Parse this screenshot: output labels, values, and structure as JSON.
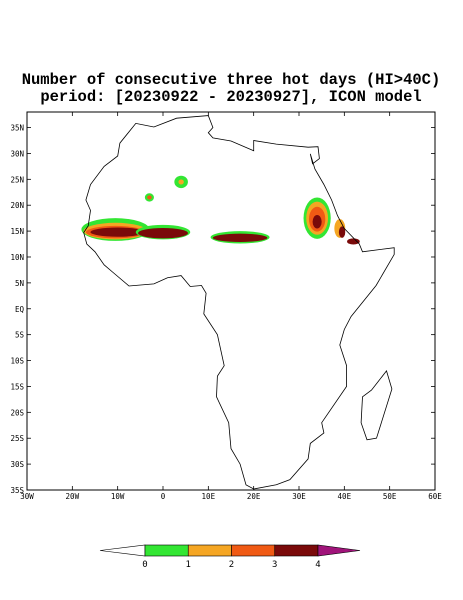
{
  "map": {
    "title": [
      "Number of consecutive three hot days (HI>40C)",
      "period: [20230922 - 20230927], ICON model"
    ],
    "lonlim": [
      -30,
      60
    ],
    "latlim": [
      -35,
      38
    ],
    "lon_ticks": [
      {
        "value": -30,
        "label": "30W"
      },
      {
        "value": -20,
        "label": "20W"
      },
      {
        "value": -10,
        "label": "10W"
      },
      0,
      {
        "value": 10,
        "label": "10E"
      },
      {
        "value": 20,
        "label": "20E"
      },
      {
        "value": 30,
        "label": "30E"
      },
      {
        "value": 40,
        "label": "40E"
      },
      {
        "value": 50,
        "label": "50E"
      },
      {
        "value": 60,
        "label": "60E"
      }
    ],
    "lat_ticks": [
      {
        "value": 35,
        "label": "35N"
      },
      {
        "value": 30,
        "label": "30N"
      },
      {
        "value": 25,
        "label": "25N"
      },
      {
        "value": 20,
        "label": "20N"
      },
      {
        "value": 15,
        "label": "15N"
      },
      {
        "value": 10,
        "label": "10N"
      },
      {
        "value": 5,
        "label": "5N"
      },
      {
        "value": 0,
        "label": "EQ"
      },
      {
        "value": -5,
        "label": "5S"
      },
      {
        "value": -10,
        "label": "10S"
      },
      {
        "value": -15,
        "label": "15S"
      },
      {
        "value": -20,
        "label": "20S"
      },
      {
        "value": -25,
        "label": "25S"
      },
      {
        "value": -30,
        "label": "30S"
      },
      {
        "value": -35,
        "label": "35S"
      }
    ]
  },
  "colorbar": {
    "levels": [
      0,
      1,
      2,
      3,
      4
    ],
    "colors": [
      "#ffffff",
      "#33e633",
      "#f5a623",
      "#f05a14",
      "#7a0a0a",
      "#a0147a"
    ]
  }
}
